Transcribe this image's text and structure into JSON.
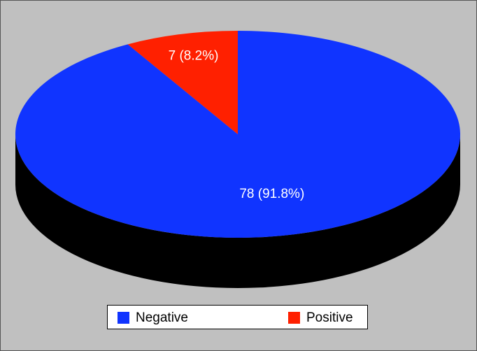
{
  "chart_data": {
    "type": "pie",
    "categories": [
      "Negative",
      "Positive"
    ],
    "values": [
      78,
      7
    ],
    "value_labels": [
      "78 (91.8%)",
      "7 (8.2%)"
    ],
    "colors": [
      "#1034ff",
      "#ff2000"
    ],
    "legend": "bottom"
  }
}
